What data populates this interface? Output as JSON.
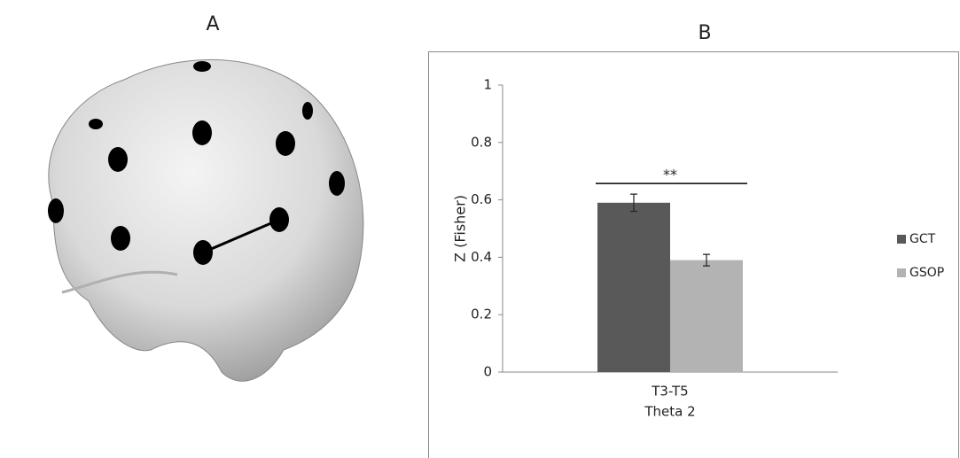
{
  "panel_labels": [
    "A",
    "B"
  ],
  "chart_data": {
    "type": "bar",
    "categories": [
      "T3-T5"
    ],
    "x_label": "Theta 2",
    "y_label": "Z (Fisher)",
    "series": [
      {
        "name": "GCT",
        "color": "#595959",
        "values": [
          0.59
        ],
        "errors": [
          0.03
        ]
      },
      {
        "name": "GSOP",
        "color": "#b3b3b3",
        "values": [
          0.39
        ],
        "errors": [
          0.02
        ]
      }
    ],
    "ylim": [
      0,
      1
    ],
    "yticks": [
      0,
      0.2,
      0.4,
      0.6,
      0.8,
      1
    ],
    "annotation": "**",
    "legend": "right"
  }
}
